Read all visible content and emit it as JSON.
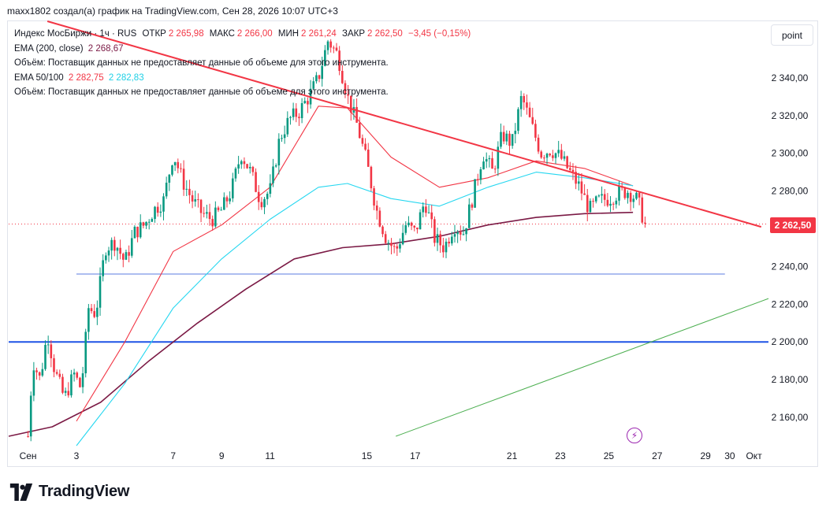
{
  "header": {
    "text": "maxx1802 создал(а) график на TradingView.com, Сен 28, 2026 10:07 UTC+3"
  },
  "legend": {
    "symbol": "Индекс МосБиржи · 1ч · RUS",
    "open_label": "ОТКР",
    "open_value": "2 265,98",
    "high_label": "МАКС",
    "high_value": "2 266,00",
    "low_label": "МИН",
    "low_value": "2 261,24",
    "close_label": "ЗАКР",
    "close_value": "2 262,50",
    "change": "−3,45 (−0,15%)",
    "ema200_label": "EMA (200, close)",
    "ema200_value": "2 268,67",
    "volume_note_1": "Объём: Поставщик данных не предоставляет данные об объеме для этого инструмента.",
    "ema50100_label": "EMA 50/100",
    "ema50_value": "2 282,75",
    "ema100_value": "2 282,83",
    "volume_note_2": "Объём: Поставщик данных не предоставляет данные об объеме для этого инструмента."
  },
  "controls": {
    "scale_mode": "point"
  },
  "last_price_label": "2 262,50",
  "branding": {
    "logo_text": "TradingView",
    "logo_icon": "tradingview-logo-icon",
    "alert_icon": "lightning-icon"
  },
  "colors": {
    "up": "#089981",
    "down": "#f23645",
    "trendline": "#f23645",
    "support": "#1e53e5",
    "ema50": "#f23645",
    "ema100": "#26d7f0",
    "ema200": "#7b1a45",
    "uptrend": "#4caf50"
  },
  "chart_data": {
    "type": "candlestick",
    "title": "",
    "x_tick_labels": [
      "Сен",
      "3",
      "7",
      "9",
      "11",
      "15",
      "17",
      "21",
      "23",
      "25",
      "27",
      "29",
      "30",
      "Окт"
    ],
    "x_tick_days": [
      1,
      3,
      7,
      9,
      11,
      15,
      17,
      21,
      23,
      25,
      27,
      29,
      30,
      31
    ],
    "y_ticks": [
      2160,
      2180,
      2200,
      2220,
      2240,
      2260,
      2280,
      2300,
      2320,
      2340
    ],
    "y_tick_labels": [
      "2 160,00",
      "2 180,00",
      "2 200,00",
      "2 220,00",
      "2 240,00",
      "",
      "2 280,00",
      "2 300,00",
      "2 320,00",
      "2 340,00"
    ],
    "ylim": [
      2145,
      2370
    ],
    "xlim_day": [
      0.2,
      31.6
    ],
    "price_path": [
      [
        1.0,
        2150
      ],
      [
        1.2,
        2190
      ],
      [
        1.5,
        2180
      ],
      [
        1.8,
        2205
      ],
      [
        2.1,
        2185
      ],
      [
        2.5,
        2170
      ],
      [
        2.9,
        2183
      ],
      [
        3.2,
        2175
      ],
      [
        3.5,
        2218
      ],
      [
        3.8,
        2215
      ],
      [
        4.2,
        2250
      ],
      [
        4.6,
        2253
      ],
      [
        5.0,
        2242
      ],
      [
        5.4,
        2258
      ],
      [
        5.8,
        2262
      ],
      [
        6.2,
        2270
      ],
      [
        6.6,
        2275
      ],
      [
        7.0,
        2300
      ],
      [
        7.4,
        2285
      ],
      [
        7.8,
        2275
      ],
      [
        8.2,
        2268
      ],
      [
        8.6,
        2265
      ],
      [
        9.0,
        2270
      ],
      [
        9.4,
        2280
      ],
      [
        9.8,
        2300
      ],
      [
        10.2,
        2290
      ],
      [
        10.6,
        2275
      ],
      [
        11.0,
        2280
      ],
      [
        11.4,
        2308
      ],
      [
        11.8,
        2318
      ],
      [
        12.2,
        2322
      ],
      [
        12.6,
        2330
      ],
      [
        13.0,
        2340
      ],
      [
        13.4,
        2360
      ],
      [
        13.8,
        2352
      ],
      [
        14.2,
        2330
      ],
      [
        14.6,
        2315
      ],
      [
        15.0,
        2295
      ],
      [
        15.4,
        2270
      ],
      [
        15.8,
        2255
      ],
      [
        16.2,
        2248
      ],
      [
        16.6,
        2262
      ],
      [
        17.0,
        2258
      ],
      [
        17.4,
        2275
      ],
      [
        17.8,
        2255
      ],
      [
        18.2,
        2250
      ],
      [
        18.6,
        2262
      ],
      [
        19.0,
        2258
      ],
      [
        19.4,
        2278
      ],
      [
        19.8,
        2300
      ],
      [
        20.2,
        2290
      ],
      [
        20.6,
        2310
      ],
      [
        21.0,
        2305
      ],
      [
        21.4,
        2330
      ],
      [
        21.8,
        2315
      ],
      [
        22.2,
        2300
      ],
      [
        22.6,
        2302
      ],
      [
        23.0,
        2298
      ],
      [
        23.4,
        2290
      ],
      [
        23.8,
        2282
      ],
      [
        24.2,
        2270
      ],
      [
        24.6,
        2275
      ],
      [
        25.0,
        2276
      ],
      [
        25.4,
        2279
      ],
      [
        25.8,
        2280
      ],
      [
        26.2,
        2275
      ],
      [
        26.5,
        2262
      ]
    ],
    "series": [
      {
        "name": "EMA (200, close)",
        "points": [
          [
            0.2,
            2150
          ],
          [
            2,
            2155
          ],
          [
            4,
            2168
          ],
          [
            6,
            2190
          ],
          [
            8,
            2210
          ],
          [
            10,
            2228
          ],
          [
            12,
            2244
          ],
          [
            14,
            2250
          ],
          [
            16,
            2252
          ],
          [
            18,
            2256
          ],
          [
            20,
            2262
          ],
          [
            22,
            2266
          ],
          [
            24,
            2268
          ],
          [
            26,
            2268.67
          ]
        ]
      },
      {
        "name": "EMA 50/100 (50)",
        "points": [
          [
            3,
            2158
          ],
          [
            5,
            2200
          ],
          [
            7,
            2248
          ],
          [
            9,
            2262
          ],
          [
            11,
            2282
          ],
          [
            13,
            2325
          ],
          [
            14.2,
            2324
          ],
          [
            16,
            2298
          ],
          [
            18,
            2282
          ],
          [
            20,
            2287
          ],
          [
            22,
            2296
          ],
          [
            24,
            2292
          ],
          [
            26,
            2282.75
          ]
        ]
      },
      {
        "name": "EMA 50/100 (100)",
        "points": [
          [
            3,
            2145
          ],
          [
            5,
            2178
          ],
          [
            7,
            2218
          ],
          [
            9,
            2244
          ],
          [
            11,
            2265
          ],
          [
            13,
            2282
          ],
          [
            14.2,
            2284
          ],
          [
            16,
            2276
          ],
          [
            18,
            2272
          ],
          [
            20,
            2282
          ],
          [
            22,
            2290
          ],
          [
            24,
            2287
          ],
          [
            26,
            2282.83
          ]
        ]
      }
    ],
    "drawings": {
      "down_trendline": [
        [
          1.8,
          2370
        ],
        [
          31.3,
          2261
        ]
      ],
      "support_line_1": [
        [
          3.0,
          2236
        ],
        [
          29.8,
          2236
        ]
      ],
      "support_line_2": [
        [
          0.2,
          2200
        ],
        [
          31.6,
          2200
        ]
      ],
      "up_trendline": [
        [
          16.2,
          2150
        ],
        [
          31.6,
          2223
        ]
      ]
    },
    "last_price": 2262.5,
    "grid": false
  }
}
